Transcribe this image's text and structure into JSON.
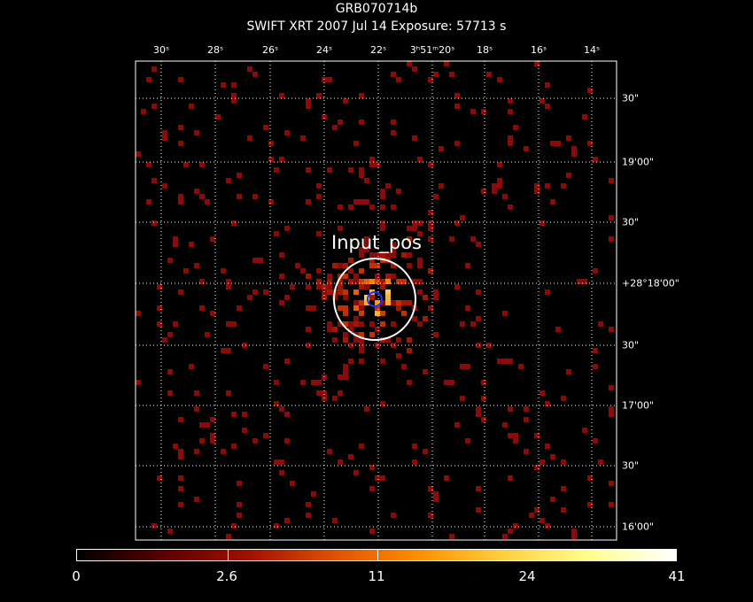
{
  "header": {
    "title": "GRB070714b",
    "subtitle": "SWIFT XRT    2007 Jul 14     Exposure: 57713 s"
  },
  "image": {
    "region_label": "Input_pos",
    "x_ticks": [
      "30ˢ",
      "28ˢ",
      "26ˢ",
      "24ˢ",
      "22ˢ",
      "3ʰ51ᵐ20ˢ",
      "18ˢ",
      "16ˢ",
      "14ˢ"
    ],
    "y_ticks": [
      "30\"",
      "19'00\"",
      "30\"",
      "+28°18'00\"",
      "30\"",
      "17'00\"",
      "30\"",
      "16'00\""
    ]
  },
  "colorbar": {
    "labels": [
      "0",
      "2.6",
      "11",
      "24",
      "41"
    ],
    "colors": [
      "#000000",
      "#5a0000",
      "#a01000",
      "#e05000",
      "#ff9000",
      "#ffd040",
      "#ffff90",
      "#ffffff"
    ]
  },
  "colors": {
    "background": "#000000",
    "source_circle": "#ffffff",
    "inner_circle": "#1f2fff",
    "grid": "#ffffff",
    "low_counts": "#8b0a0a"
  }
}
